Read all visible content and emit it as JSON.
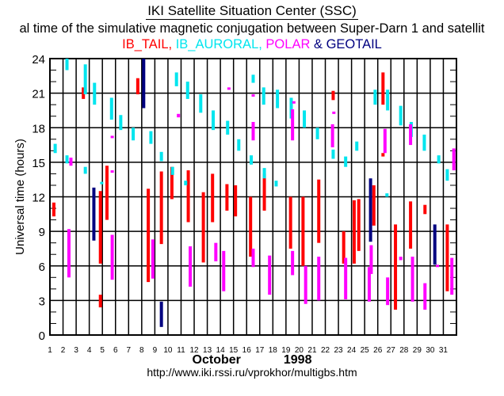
{
  "header": {
    "title": "IKI Satellite Situation Center (SSC)",
    "subtitle": "al time of the simulative magnetic conjugation between Super-Darn 1 and satellit",
    "legend_parts": [
      {
        "text": "IB_TAIL,",
        "color": "#ff0000"
      },
      {
        "text": " IB_AURORAL,",
        "color": "#00e5ee"
      },
      {
        "text": " POLAR",
        "color": "#ff00ff"
      },
      {
        "text": " & ",
        "color": "#000080"
      },
      {
        "text": "GEOTAIL",
        "color": "#000080"
      }
    ]
  },
  "footer": {
    "month": "October",
    "year": "1998",
    "url": "http://www.iki.rssi.ru/vprokhor/multigbs.htm"
  },
  "chart_data": {
    "type": "range-bar",
    "title": "IKI Satellite Situation Center (SSC)",
    "xlabel": "October 1998",
    "ylabel": "Universal time (hours)",
    "x_ticks": [
      1,
      2,
      3,
      4,
      5,
      6,
      7,
      8,
      9,
      10,
      11,
      12,
      13,
      14,
      15,
      16,
      17,
      18,
      19,
      20,
      21,
      22,
      23,
      24,
      25,
      26,
      27,
      28,
      29,
      30,
      31
    ],
    "y_ticks": [
      0,
      3,
      6,
      9,
      12,
      15,
      18,
      21,
      24
    ],
    "ylim": [
      0,
      24
    ],
    "xlim": [
      1,
      32
    ],
    "grid": true,
    "series": [
      {
        "name": "IB_TAIL",
        "color": "#ff0000",
        "bars": [
          {
            "day": 1,
            "pos": 0.3,
            "from": 10.3,
            "to": 11.5
          },
          {
            "day": 3,
            "pos": 0.55,
            "from": 20.5,
            "to": 21.5
          },
          {
            "day": 4,
            "pos": 0.85,
            "from": 6.2,
            "to": 12.5
          },
          {
            "day": 4,
            "pos": 0.85,
            "from": 2.4,
            "to": 3.5
          },
          {
            "day": 5,
            "pos": 0.35,
            "from": 10.0,
            "to": 14.7
          },
          {
            "day": 7,
            "pos": 0.7,
            "from": 20.9,
            "to": 22.3
          },
          {
            "day": 8,
            "pos": 0.5,
            "from": 4.6,
            "to": 12.7
          },
          {
            "day": 9,
            "pos": 0.5,
            "from": 7.9,
            "to": 14.2
          },
          {
            "day": 10,
            "pos": 0.3,
            "from": 11.8,
            "to": 14.6
          },
          {
            "day": 11,
            "pos": 0.55,
            "from": 9.8,
            "to": 14.3
          },
          {
            "day": 12,
            "pos": 0.7,
            "from": 6.3,
            "to": 12.4
          },
          {
            "day": 13,
            "pos": 0.4,
            "from": 9.8,
            "to": 14.0
          },
          {
            "day": 14,
            "pos": 0.5,
            "from": 10.8,
            "to": 13.1
          },
          {
            "day": 15,
            "pos": 0.15,
            "from": 10.3,
            "to": 13.0
          },
          {
            "day": 16,
            "pos": 0.3,
            "from": 6.8,
            "to": 12.0
          },
          {
            "day": 17,
            "pos": 0.35,
            "from": 10.8,
            "to": 14.0
          },
          {
            "day": 19,
            "pos": 0.35,
            "from": 7.5,
            "to": 12.0
          },
          {
            "day": 20,
            "pos": 0.3,
            "from": 6.0,
            "to": 12.0
          },
          {
            "day": 21,
            "pos": 0.5,
            "from": 8.0,
            "to": 13.5
          },
          {
            "day": 22,
            "pos": 0.6,
            "from": 20.4,
            "to": 21.2
          },
          {
            "day": 23,
            "pos": 0.4,
            "from": 6.2,
            "to": 9.0
          },
          {
            "day": 24,
            "pos": 0.55,
            "from": 7.3,
            "to": 11.8
          },
          {
            "day": 24,
            "pos": 0.2,
            "from": 6.2,
            "to": 11.7
          },
          {
            "day": 25,
            "pos": 0.7,
            "from": 9.5,
            "to": 13.0
          },
          {
            "day": 26,
            "pos": 0.4,
            "from": 20.0,
            "to": 22.8
          },
          {
            "day": 26,
            "pos": 0.4,
            "from": 15.5,
            "to": 15.8
          },
          {
            "day": 27,
            "pos": 0.35,
            "from": 2.2,
            "to": 9.6
          },
          {
            "day": 28,
            "pos": 0.5,
            "from": 7.5,
            "to": 11.6
          },
          {
            "day": 29,
            "pos": 0.6,
            "from": 10.5,
            "to": 11.3
          },
          {
            "day": 31,
            "pos": 0.3,
            "from": 3.8,
            "to": 9.6
          }
        ]
      },
      {
        "name": "IB_AURORAL",
        "color": "#00e5ee",
        "bars": [
          {
            "day": 1,
            "pos": 0.4,
            "from": 15.8,
            "to": 16.6
          },
          {
            "day": 2,
            "pos": 0.3,
            "from": 23.0,
            "to": 24.0
          },
          {
            "day": 2,
            "pos": 0.3,
            "from": 14.9,
            "to": 15.6
          },
          {
            "day": 3,
            "pos": 0.7,
            "from": 20.9,
            "to": 23.5
          },
          {
            "day": 3,
            "pos": 0.7,
            "from": 14.0,
            "to": 14.6
          },
          {
            "day": 4,
            "pos": 0.4,
            "from": 20.0,
            "to": 21.9
          },
          {
            "day": 4,
            "pos": 0.95,
            "from": 13.1,
            "to": 13.3
          },
          {
            "day": 5,
            "pos": 0.7,
            "from": 18.7,
            "to": 20.6
          },
          {
            "day": 6,
            "pos": 0.4,
            "from": 17.8,
            "to": 19.1
          },
          {
            "day": 7,
            "pos": 0.35,
            "from": 16.9,
            "to": 18.0
          },
          {
            "day": 8,
            "pos": 0.7,
            "from": 16.6,
            "to": 17.7
          },
          {
            "day": 9,
            "pos": 0.5,
            "from": 15.1,
            "to": 15.9
          },
          {
            "day": 10,
            "pos": 0.35,
            "from": 13.9,
            "to": 14.6
          },
          {
            "day": 10,
            "pos": 0.65,
            "from": 21.6,
            "to": 22.8
          },
          {
            "day": 11,
            "pos": 0.5,
            "from": 20.5,
            "to": 22.0
          },
          {
            "day": 11,
            "pos": 0.35,
            "from": 13.0,
            "to": 13.4
          },
          {
            "day": 12,
            "pos": 0.5,
            "from": 19.3,
            "to": 20.9
          },
          {
            "day": 13,
            "pos": 0.45,
            "from": 17.8,
            "to": 19.5
          },
          {
            "day": 14,
            "pos": 0.55,
            "from": 17.4,
            "to": 18.6
          },
          {
            "day": 15,
            "pos": 0.4,
            "from": 16.0,
            "to": 17.0
          },
          {
            "day": 16,
            "pos": 0.35,
            "from": 14.8,
            "to": 15.6
          },
          {
            "day": 16,
            "pos": 0.5,
            "from": 21.9,
            "to": 22.6
          },
          {
            "day": 17,
            "pos": 0.3,
            "from": 20.0,
            "to": 21.5
          },
          {
            "day": 17,
            "pos": 0.35,
            "from": 13.6,
            "to": 14.5
          },
          {
            "day": 18,
            "pos": 0.35,
            "from": 19.7,
            "to": 21.3
          },
          {
            "day": 18,
            "pos": 0.25,
            "from": 12.9,
            "to": 13.4
          },
          {
            "day": 19,
            "pos": 0.4,
            "from": 18.8,
            "to": 20.6
          },
          {
            "day": 20,
            "pos": 0.4,
            "from": 18.0,
            "to": 19.5
          },
          {
            "day": 21,
            "pos": 0.4,
            "from": 17.0,
            "to": 18.0
          },
          {
            "day": 22,
            "pos": 0.6,
            "from": 15.3,
            "to": 16.1
          },
          {
            "day": 23,
            "pos": 0.55,
            "from": 14.6,
            "to": 15.5
          },
          {
            "day": 24,
            "pos": 0.4,
            "from": 16.0,
            "to": 16.8
          },
          {
            "day": 25,
            "pos": 0.8,
            "from": 20.0,
            "to": 21.3
          },
          {
            "day": 26,
            "pos": 0.75,
            "from": 19.5,
            "to": 21.3
          },
          {
            "day": 26,
            "pos": 0.7,
            "from": 12.0,
            "to": 12.3
          },
          {
            "day": 27,
            "pos": 0.75,
            "from": 18.2,
            "to": 19.9
          },
          {
            "day": 28,
            "pos": 0.55,
            "from": 17.2,
            "to": 18.5
          },
          {
            "day": 29,
            "pos": 0.55,
            "from": 16.0,
            "to": 17.4
          },
          {
            "day": 30,
            "pos": 0.65,
            "from": 14.9,
            "to": 15.6
          },
          {
            "day": 31,
            "pos": 0.3,
            "from": 13.4,
            "to": 14.4
          }
        ]
      },
      {
        "name": "POLAR",
        "color": "#ff00ff",
        "bars": [
          {
            "day": 2,
            "pos": 0.6,
            "from": 14.7,
            "to": 15.4
          },
          {
            "day": 2,
            "pos": 0.45,
            "from": 5.0,
            "to": 9.2
          },
          {
            "day": 5,
            "pos": 0.75,
            "from": 14.1,
            "to": 14.3
          },
          {
            "day": 5,
            "pos": 0.75,
            "from": 17.1,
            "to": 17.3
          },
          {
            "day": 5,
            "pos": 0.75,
            "from": 4.8,
            "to": 8.7
          },
          {
            "day": 8,
            "pos": 0.85,
            "from": 4.9,
            "to": 8.3
          },
          {
            "day": 10,
            "pos": 0.8,
            "from": 18.9,
            "to": 19.2
          },
          {
            "day": 11,
            "pos": 0.7,
            "from": 4.2,
            "to": 7.7
          },
          {
            "day": 13,
            "pos": 0.65,
            "from": 6.4,
            "to": 8.0
          },
          {
            "day": 14,
            "pos": 0.65,
            "from": 21.4,
            "to": 21.5
          },
          {
            "day": 14,
            "pos": 0.25,
            "from": 3.8,
            "to": 7.3
          },
          {
            "day": 16,
            "pos": 0.5,
            "from": 5.9,
            "to": 7.5
          },
          {
            "day": 16,
            "pos": 0.5,
            "from": 20.8,
            "to": 20.9
          },
          {
            "day": 16,
            "pos": 0.5,
            "from": 16.9,
            "to": 18.5
          },
          {
            "day": 17,
            "pos": 0.75,
            "from": 3.5,
            "to": 6.9
          },
          {
            "day": 19,
            "pos": 0.5,
            "from": 5.2,
            "to": 7.3
          },
          {
            "day": 19,
            "pos": 0.5,
            "from": 16.9,
            "to": 19.6
          },
          {
            "day": 19,
            "pos": 0.6,
            "from": 20.1,
            "to": 20.3
          },
          {
            "day": 20,
            "pos": 0.5,
            "from": 2.7,
            "to": 6.0
          },
          {
            "day": 21,
            "pos": 0.5,
            "from": 3.0,
            "to": 6.8
          },
          {
            "day": 22,
            "pos": 0.55,
            "from": 16.3,
            "to": 18.3
          },
          {
            "day": 22,
            "pos": 0.65,
            "from": 19.2,
            "to": 19.4
          },
          {
            "day": 23,
            "pos": 0.55,
            "from": 3.1,
            "to": 6.7
          },
          {
            "day": 25,
            "pos": 0.5,
            "from": 5.3,
            "to": 7.8
          },
          {
            "day": 25,
            "pos": 0.35,
            "from": 2.9,
            "to": 5.9
          },
          {
            "day": 26,
            "pos": 0.55,
            "from": 15.8,
            "to": 17.9
          },
          {
            "day": 26,
            "pos": 0.75,
            "from": 2.6,
            "to": 5.0
          },
          {
            "day": 27,
            "pos": 0.75,
            "from": 6.5,
            "to": 6.8
          },
          {
            "day": 28,
            "pos": 0.65,
            "from": 2.9,
            "to": 6.8
          },
          {
            "day": 28,
            "pos": 0.5,
            "from": 16.5,
            "to": 18.3
          },
          {
            "day": 29,
            "pos": 0.6,
            "from": 2.2,
            "to": 4.5
          },
          {
            "day": 30,
            "pos": 0.55,
            "from": 6.0,
            "to": 6.1
          },
          {
            "day": 31,
            "pos": 0.65,
            "from": 3.5,
            "to": 6.7
          },
          {
            "day": 31,
            "pos": 0.8,
            "from": 14.3,
            "to": 16.2
          }
        ]
      },
      {
        "name": "GEOTAIL",
        "color": "#000080",
        "bars": [
          {
            "day": 4,
            "pos": 0.35,
            "from": 8.2,
            "to": 12.8
          },
          {
            "day": 8,
            "pos": 0.15,
            "from": 19.7,
            "to": 24.0
          },
          {
            "day": 9,
            "pos": 0.5,
            "from": 0.7,
            "to": 2.9
          },
          {
            "day": 25,
            "pos": 0.45,
            "from": 8.1,
            "to": 13.6
          },
          {
            "day": 30,
            "pos": 0.35,
            "from": 6.1,
            "to": 9.6
          }
        ]
      }
    ]
  }
}
